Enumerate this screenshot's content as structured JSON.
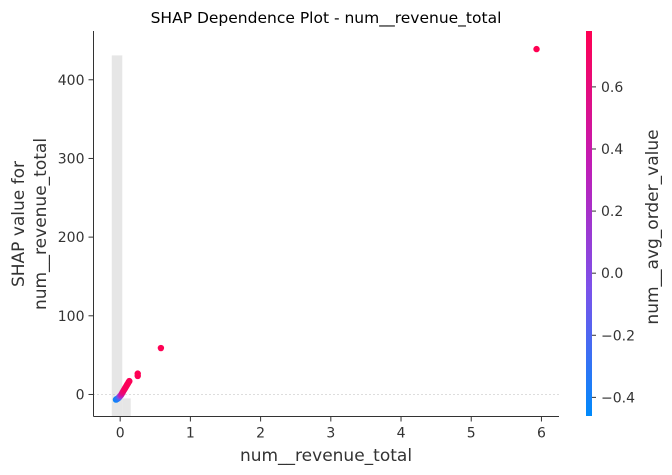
{
  "chart_data": {
    "type": "scatter",
    "title": "SHAP Dependence Plot - num__revenue_total",
    "xlabel": "num__revenue_total",
    "ylabel": [
      "SHAP value for",
      "num__revenue_total"
    ],
    "colorbar_label": "num__avg_order_value",
    "xlim": [
      -0.38,
      6.25
    ],
    "ylim": [
      -28,
      462
    ],
    "x_ticks": [
      0,
      1,
      2,
      3,
      4,
      5,
      6
    ],
    "x_tick_labels": [
      "0",
      "1",
      "2",
      "3",
      "4",
      "5",
      "6"
    ],
    "y_ticks": [
      0,
      100,
      200,
      300,
      400
    ],
    "y_tick_labels": [
      "0",
      "100",
      "200",
      "300",
      "400"
    ],
    "colorbar_range": [
      -0.46,
      0.78
    ],
    "colorbar_ticks": [
      -0.4,
      -0.2,
      0.0,
      0.2,
      0.4,
      0.6
    ],
    "colorbar_tick_labels": [
      "−0.4",
      "−0.2",
      "0.0",
      "0.2",
      "0.4",
      "0.6"
    ],
    "colormap_stops": [
      "#008afb",
      "#7c52ea",
      "#c21bb4",
      "#ff0052"
    ],
    "zero_line": true,
    "histogram": [
      {
        "x0": -0.12,
        "x1": 0.03,
        "y_top": 431
      },
      {
        "x0": 0.03,
        "x1": 0.15,
        "y_top": -5
      }
    ],
    "points": [
      {
        "x": -0.06,
        "y": -6.5,
        "c": -0.42
      },
      {
        "x": -0.05,
        "y": -6,
        "c": -0.4
      },
      {
        "x": -0.04,
        "y": -5.5,
        "c": -0.38
      },
      {
        "x": -0.03,
        "y": -5,
        "c": -0.33
      },
      {
        "x": -0.02,
        "y": -4,
        "c": -0.28
      },
      {
        "x": -0.01,
        "y": -3,
        "c": -0.15
      },
      {
        "x": 0.0,
        "y": -2,
        "c": 0.05
      },
      {
        "x": 0.01,
        "y": -1,
        "c": 0.25
      },
      {
        "x": 0.02,
        "y": 0.5,
        "c": 0.4
      },
      {
        "x": 0.03,
        "y": 2,
        "c": 0.55
      },
      {
        "x": 0.04,
        "y": 3.5,
        "c": 0.62
      },
      {
        "x": 0.05,
        "y": 5,
        "c": 0.66
      },
      {
        "x": 0.06,
        "y": 6.5,
        "c": 0.7
      },
      {
        "x": 0.07,
        "y": 8,
        "c": 0.72
      },
      {
        "x": 0.08,
        "y": 9.5,
        "c": 0.73
      },
      {
        "x": 0.09,
        "y": 11,
        "c": 0.74
      },
      {
        "x": 0.1,
        "y": 12.5,
        "c": 0.75
      },
      {
        "x": 0.11,
        "y": 14,
        "c": 0.75
      },
      {
        "x": 0.12,
        "y": 15.5,
        "c": 0.76
      },
      {
        "x": 0.13,
        "y": 17,
        "c": 0.76
      },
      {
        "x": 0.25,
        "y": 23.5,
        "c": 0.76
      },
      {
        "x": 0.25,
        "y": 26.5,
        "c": 0.77
      },
      {
        "x": 0.58,
        "y": 59,
        "c": 0.77
      },
      {
        "x": 5.93,
        "y": 439,
        "c": 0.78
      }
    ]
  }
}
